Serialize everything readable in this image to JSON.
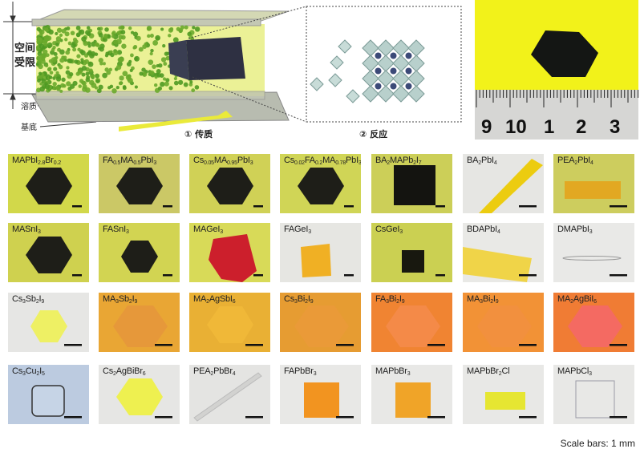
{
  "schematic": {
    "confined_space_label": [
      "空间",
      "受限"
    ],
    "solute_label": "溶质",
    "substrate_label": "基底",
    "step1_label": "① 传质",
    "step2_label": "② 反应"
  },
  "photo": {
    "ruler_numbers": [
      "9",
      "10",
      "1",
      "2",
      "3"
    ]
  },
  "panels": [
    {
      "label": [
        {
          "t": "MAPbI"
        },
        {
          "s": "2.8"
        },
        {
          "t": "Br"
        },
        {
          "s": "0.2"
        }
      ],
      "bg": "#d2d84a",
      "shape": "hexagon",
      "color": "#1e1e18"
    },
    {
      "label": [
        {
          "t": "FA"
        },
        {
          "s": "0.5"
        },
        {
          "t": "MA"
        },
        {
          "s": "0.5"
        },
        {
          "t": "PbI"
        },
        {
          "s": "3"
        }
      ],
      "bg": "#cbc866",
      "shape": "hexagon",
      "color": "#1e1e18"
    },
    {
      "label": [
        {
          "t": "Cs"
        },
        {
          "s": "0.05"
        },
        {
          "t": "MA"
        },
        {
          "s": "0.95"
        },
        {
          "t": "PbI"
        },
        {
          "s": "3"
        }
      ],
      "bg": "#d0d156",
      "shape": "hexagon",
      "color": "#1e1e18"
    },
    {
      "label": [
        {
          "t": "Cs"
        },
        {
          "s": "0.02"
        },
        {
          "t": "FA"
        },
        {
          "s": "0.2"
        },
        {
          "t": "MA"
        },
        {
          "s": "0.78"
        },
        {
          "t": "PbI"
        },
        {
          "s": "3"
        }
      ],
      "bg": "#d0d556",
      "shape": "hexagon",
      "color": "#1e1e18"
    },
    {
      "label": [
        {
          "t": "BA"
        },
        {
          "s": "2"
        },
        {
          "t": "MAPb"
        },
        {
          "s": "2"
        },
        {
          "t": "I"
        },
        {
          "s": "7"
        }
      ],
      "bg": "#cccf58",
      "shape": "square",
      "color": "#141410"
    },
    {
      "label": [
        {
          "t": "BA"
        },
        {
          "s": "2"
        },
        {
          "t": "PbI"
        },
        {
          "s": "4"
        }
      ],
      "bg": "#e6e6e3",
      "shape": "strip",
      "color": "#eccc10"
    },
    {
      "label": [
        {
          "t": "PEA"
        },
        {
          "s": "2"
        },
        {
          "t": "PbI"
        },
        {
          "s": "4"
        }
      ],
      "bg": "#cdcd5e",
      "shape": "rect",
      "color": "#e2a822"
    },
    {
      "label": [
        {
          "t": "MASnI"
        },
        {
          "s": "3"
        }
      ],
      "bg": "#cfd14f",
      "shape": "hexagon",
      "color": "#1e1e18"
    },
    {
      "label": [
        {
          "t": "FASnI"
        },
        {
          "s": "3"
        }
      ],
      "bg": "#d2d452",
      "shape": "hexagon-small",
      "color": "#1e1e18"
    },
    {
      "label": [
        {
          "t": "MAGeI"
        },
        {
          "s": "3"
        }
      ],
      "bg": "#d8da58",
      "shape": "polygon",
      "color": "#cc1f2c"
    },
    {
      "label": [
        {
          "t": "FAGeI"
        },
        {
          "s": "3"
        }
      ],
      "bg": "#e6e6e2",
      "shape": "tilted-square",
      "color": "#f0b024"
    },
    {
      "label": [
        {
          "t": "CsGeI"
        },
        {
          "s": "3"
        }
      ],
      "bg": "#cbd052",
      "shape": "small-square",
      "color": "#18180f"
    },
    {
      "label": [
        {
          "t": "BDAPbI"
        },
        {
          "s": "4"
        }
      ],
      "bg": "#e9e9e6",
      "shape": "strip-flat",
      "color": "#f0d448"
    },
    {
      "label": [
        {
          "t": "DMAPbI"
        },
        {
          "s": "3"
        }
      ],
      "bg": "#e9e9e7",
      "shape": "needle",
      "color": "#b8b8b8"
    },
    {
      "label": [
        {
          "t": "Cs"
        },
        {
          "s": "3"
        },
        {
          "t": "Sb"
        },
        {
          "s": "2"
        },
        {
          "t": "I"
        },
        {
          "s": "9"
        }
      ],
      "bg": "#e6e6e4",
      "shape": "hexagon-small",
      "color": "#eef064"
    },
    {
      "label": [
        {
          "t": "MA"
        },
        {
          "s": "3"
        },
        {
          "t": "Sb"
        },
        {
          "s": "2"
        },
        {
          "t": "I"
        },
        {
          "s": "9"
        }
      ],
      "bg": "#e9a634",
      "shape": "hexagon-large",
      "color": "#e6983a"
    },
    {
      "label": [
        {
          "t": "MA"
        },
        {
          "s": "2"
        },
        {
          "t": "AgSbI"
        },
        {
          "s": "6"
        }
      ],
      "bg": "#e9b034",
      "shape": "hexagon",
      "color": "#f0b838"
    },
    {
      "label": [
        {
          "t": "Cs"
        },
        {
          "s": "3"
        },
        {
          "t": "Bi"
        },
        {
          "s": "2"
        },
        {
          "t": "I"
        },
        {
          "s": "9"
        }
      ],
      "bg": "#e69c32",
      "shape": "hexagon-large",
      "color": "#ea9a38"
    },
    {
      "label": [
        {
          "t": "FA"
        },
        {
          "s": "3"
        },
        {
          "t": "Bi"
        },
        {
          "s": "2"
        },
        {
          "t": "I"
        },
        {
          "s": "9"
        }
      ],
      "bg": "#f08432",
      "shape": "hexagon-large",
      "color": "#f48a48"
    },
    {
      "label": [
        {
          "t": "MA"
        },
        {
          "s": "3"
        },
        {
          "t": "Bi"
        },
        {
          "s": "2"
        },
        {
          "t": "I"
        },
        {
          "s": "9"
        }
      ],
      "bg": "#f29236",
      "shape": "hexagon-large",
      "color": "#f2903e"
    },
    {
      "label": [
        {
          "t": "MA"
        },
        {
          "s": "2"
        },
        {
          "t": "AgBiI"
        },
        {
          "s": "6"
        }
      ],
      "bg": "#f07c34",
      "shape": "hexagon-large",
      "color": "#f46a62"
    },
    {
      "label": [
        {
          "t": "Cs"
        },
        {
          "s": "3"
        },
        {
          "t": "Cu"
        },
        {
          "s": "2"
        },
        {
          "t": "I"
        },
        {
          "s": "5"
        }
      ],
      "bg": "#bccbe0",
      "shape": "rounded-square",
      "color": "#c6d4e6"
    },
    {
      "label": [
        {
          "t": "Cs"
        },
        {
          "s": "2"
        },
        {
          "t": "AgBiBr"
        },
        {
          "s": "6"
        }
      ],
      "bg": "#e6e6e4",
      "shape": "hexagon",
      "color": "#eef050"
    },
    {
      "label": [
        {
          "t": "PEA"
        },
        {
          "s": "2"
        },
        {
          "t": "PbBr"
        },
        {
          "s": "4"
        }
      ],
      "bg": "#e4e4e2",
      "shape": "thin-strip",
      "color": "#d2d2d0"
    },
    {
      "label": [
        {
          "t": "FAPbBr"
        },
        {
          "s": "3"
        }
      ],
      "bg": "#e8e8e6",
      "shape": "square-mid",
      "color": "#f29420"
    },
    {
      "label": [
        {
          "t": "MAPbBr"
        },
        {
          "s": "3"
        }
      ],
      "bg": "#e8e8e6",
      "shape": "square-mid",
      "color": "#f0a428"
    },
    {
      "label": [
        {
          "t": "MAPbBr"
        },
        {
          "s": "2"
        },
        {
          "t": "Cl"
        }
      ],
      "bg": "#e8e8e6",
      "shape": "yellow-rect",
      "color": "#e6e632"
    },
    {
      "label": [
        {
          "t": "MAPbCl"
        },
        {
          "s": "3"
        }
      ],
      "bg": "#e8e8e6",
      "shape": "outline-square",
      "color": "#9a9aa6"
    }
  ],
  "scale_note": "Scale bars: 1 mm"
}
